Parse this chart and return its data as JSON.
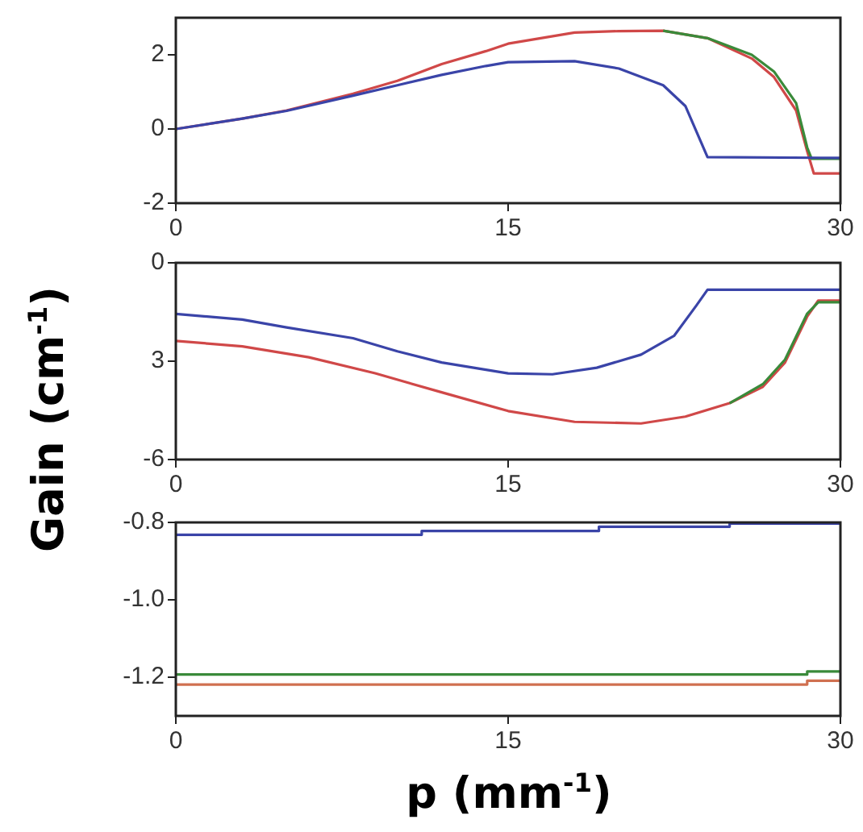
{
  "chart_data": [
    {
      "type": "line",
      "xlim": [
        0,
        30
      ],
      "xticks": [
        0,
        15,
        30
      ],
      "ylim": [
        -2,
        3
      ],
      "yticks": [
        -2,
        0,
        2
      ],
      "grid": false,
      "series": [
        {
          "color": "#3a44a8",
          "x": [
            0,
            3,
            5,
            8,
            10,
            12,
            14,
            15,
            18,
            20,
            22,
            23,
            23.5,
            24,
            30
          ],
          "values": [
            0,
            0.28,
            0.49,
            0.9,
            1.18,
            1.46,
            1.7,
            1.8,
            1.83,
            1.63,
            1.18,
            0.62,
            -0.07,
            -0.76,
            -0.78
          ]
        },
        {
          "color": "#3a8a3a",
          "x": [
            22,
            24,
            26,
            27,
            28,
            28.5,
            28.7,
            30
          ],
          "values": [
            2.65,
            2.45,
            2.0,
            1.55,
            0.7,
            -0.5,
            -0.8,
            -0.8
          ]
        },
        {
          "color": "#d04848",
          "x": [
            0,
            3,
            5,
            8,
            10,
            12,
            14,
            15,
            18,
            20,
            22,
            24,
            26,
            27,
            28,
            28.5,
            28.8,
            30
          ],
          "values": [
            0,
            0.28,
            0.5,
            0.95,
            1.3,
            1.75,
            2.1,
            2.3,
            2.6,
            2.64,
            2.65,
            2.45,
            1.9,
            1.4,
            0.5,
            -0.6,
            -1.2,
            -1.2
          ]
        }
      ]
    },
    {
      "type": "line",
      "ylabel": "Gain (cm$^{-1}$)",
      "xlim": [
        0,
        30
      ],
      "xticks": [
        0,
        15,
        30
      ],
      "ylim": [
        -6,
        0
      ],
      "yticks": [
        -6,
        {
          "value": -3,
          "label": "3"
        },
        0
      ],
      "grid": false,
      "series": [
        {
          "color": "#3a44a8",
          "x": [
            0,
            3,
            5,
            8,
            10,
            12,
            15,
            17,
            19,
            21,
            22.5,
            23.5,
            24,
            30
          ],
          "values": [
            -1.56,
            -1.73,
            -1.97,
            -2.3,
            -2.7,
            -3.04,
            -3.37,
            -3.4,
            -3.2,
            -2.8,
            -2.22,
            -1.3,
            -0.82,
            -0.82
          ]
        },
        {
          "color": "#3a8a3a",
          "x": [
            25,
            26.5,
            27.5,
            28.5,
            29,
            30
          ],
          "values": [
            -4.28,
            -3.7,
            -2.95,
            -1.55,
            -1.2,
            -1.2
          ]
        },
        {
          "color": "#d04848",
          "x": [
            0,
            3,
            6,
            9,
            12,
            15,
            18,
            21,
            23,
            25,
            26.5,
            27.5,
            28.5,
            29,
            30
          ],
          "values": [
            -2.38,
            -2.55,
            -2.88,
            -3.37,
            -3.95,
            -4.52,
            -4.85,
            -4.9,
            -4.69,
            -4.28,
            -3.78,
            -3.04,
            -1.64,
            -1.15,
            -1.15
          ]
        }
      ]
    },
    {
      "type": "step",
      "xlabel": "p (mm$^{-1}$)",
      "xlim": [
        0,
        30
      ],
      "xticks": [
        0,
        15,
        30
      ],
      "ylim": [
        -1.3,
        -0.8
      ],
      "yticks": [
        {
          "value": -1.2,
          "label": "-1.2"
        },
        {
          "value": -1.0,
          "label": "-1.0"
        },
        {
          "value": -0.8,
          "label": "-0.8"
        }
      ],
      "grid": false,
      "series": [
        {
          "color": "#3a44a8",
          "x": [
            0,
            11.1,
            19.1,
            25,
            30
          ],
          "values": [
            -0.832,
            -0.822,
            -0.811,
            -0.803,
            -0.803
          ]
        },
        {
          "color": "#3a8a3a",
          "x": [
            0,
            28.5,
            30
          ],
          "values": [
            -1.193,
            -1.185,
            -1.185
          ]
        },
        {
          "color": "#d07050",
          "x": [
            0,
            28.5,
            30
          ],
          "values": [
            -1.219,
            -1.209,
            -1.209
          ]
        }
      ]
    }
  ]
}
